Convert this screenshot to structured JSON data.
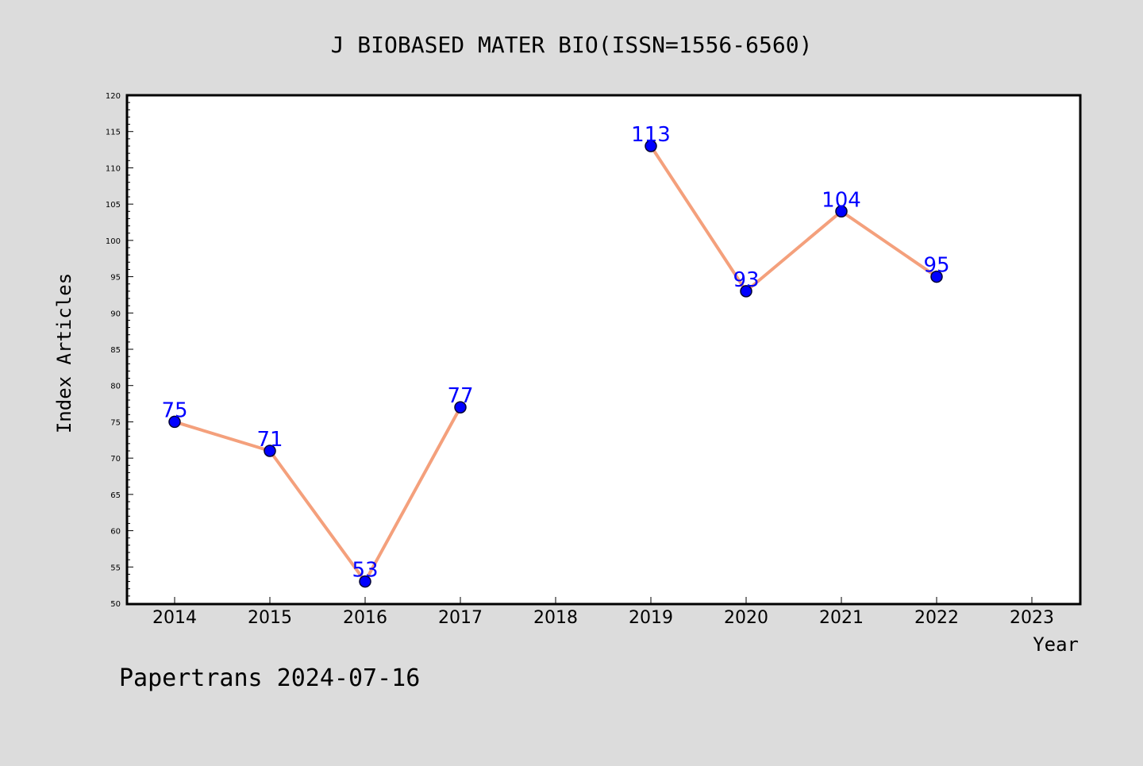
{
  "chart_data": {
    "type": "line",
    "title": "J BIOBASED MATER BIO(ISSN=1556-6560)",
    "xlabel": "Year",
    "ylabel": "Index Articles",
    "footer": "Papertrans 2024-07-16",
    "x_ticks": [
      "2014",
      "2015",
      "2016",
      "2017",
      "2018",
      "2019",
      "2020",
      "2021",
      "2022",
      "2023"
    ],
    "y_ticks": [
      "50",
      "55",
      "60",
      "65",
      "70",
      "75",
      "80",
      "85",
      "90",
      "95",
      "100",
      "105",
      "110",
      "115",
      "120"
    ],
    "ylim": [
      50,
      120
    ],
    "xlim": [
      2013.5,
      2023.5
    ],
    "segments": [
      [
        {
          "x": 2014,
          "y": 75
        },
        {
          "x": 2015,
          "y": 71
        },
        {
          "x": 2016,
          "y": 53
        },
        {
          "x": 2017,
          "y": 77
        }
      ],
      [
        {
          "x": 2019,
          "y": 113
        },
        {
          "x": 2020,
          "y": 93
        },
        {
          "x": 2021,
          "y": 104
        },
        {
          "x": 2022,
          "y": 95
        }
      ]
    ],
    "colors": {
      "line": "#f4a07c",
      "marker": "#0000ff",
      "marker_edge": "#000033",
      "label": "#0000ff",
      "background": "#dcdcdc",
      "plot_background": "#ffffff"
    },
    "grid": false,
    "legend": false
  }
}
